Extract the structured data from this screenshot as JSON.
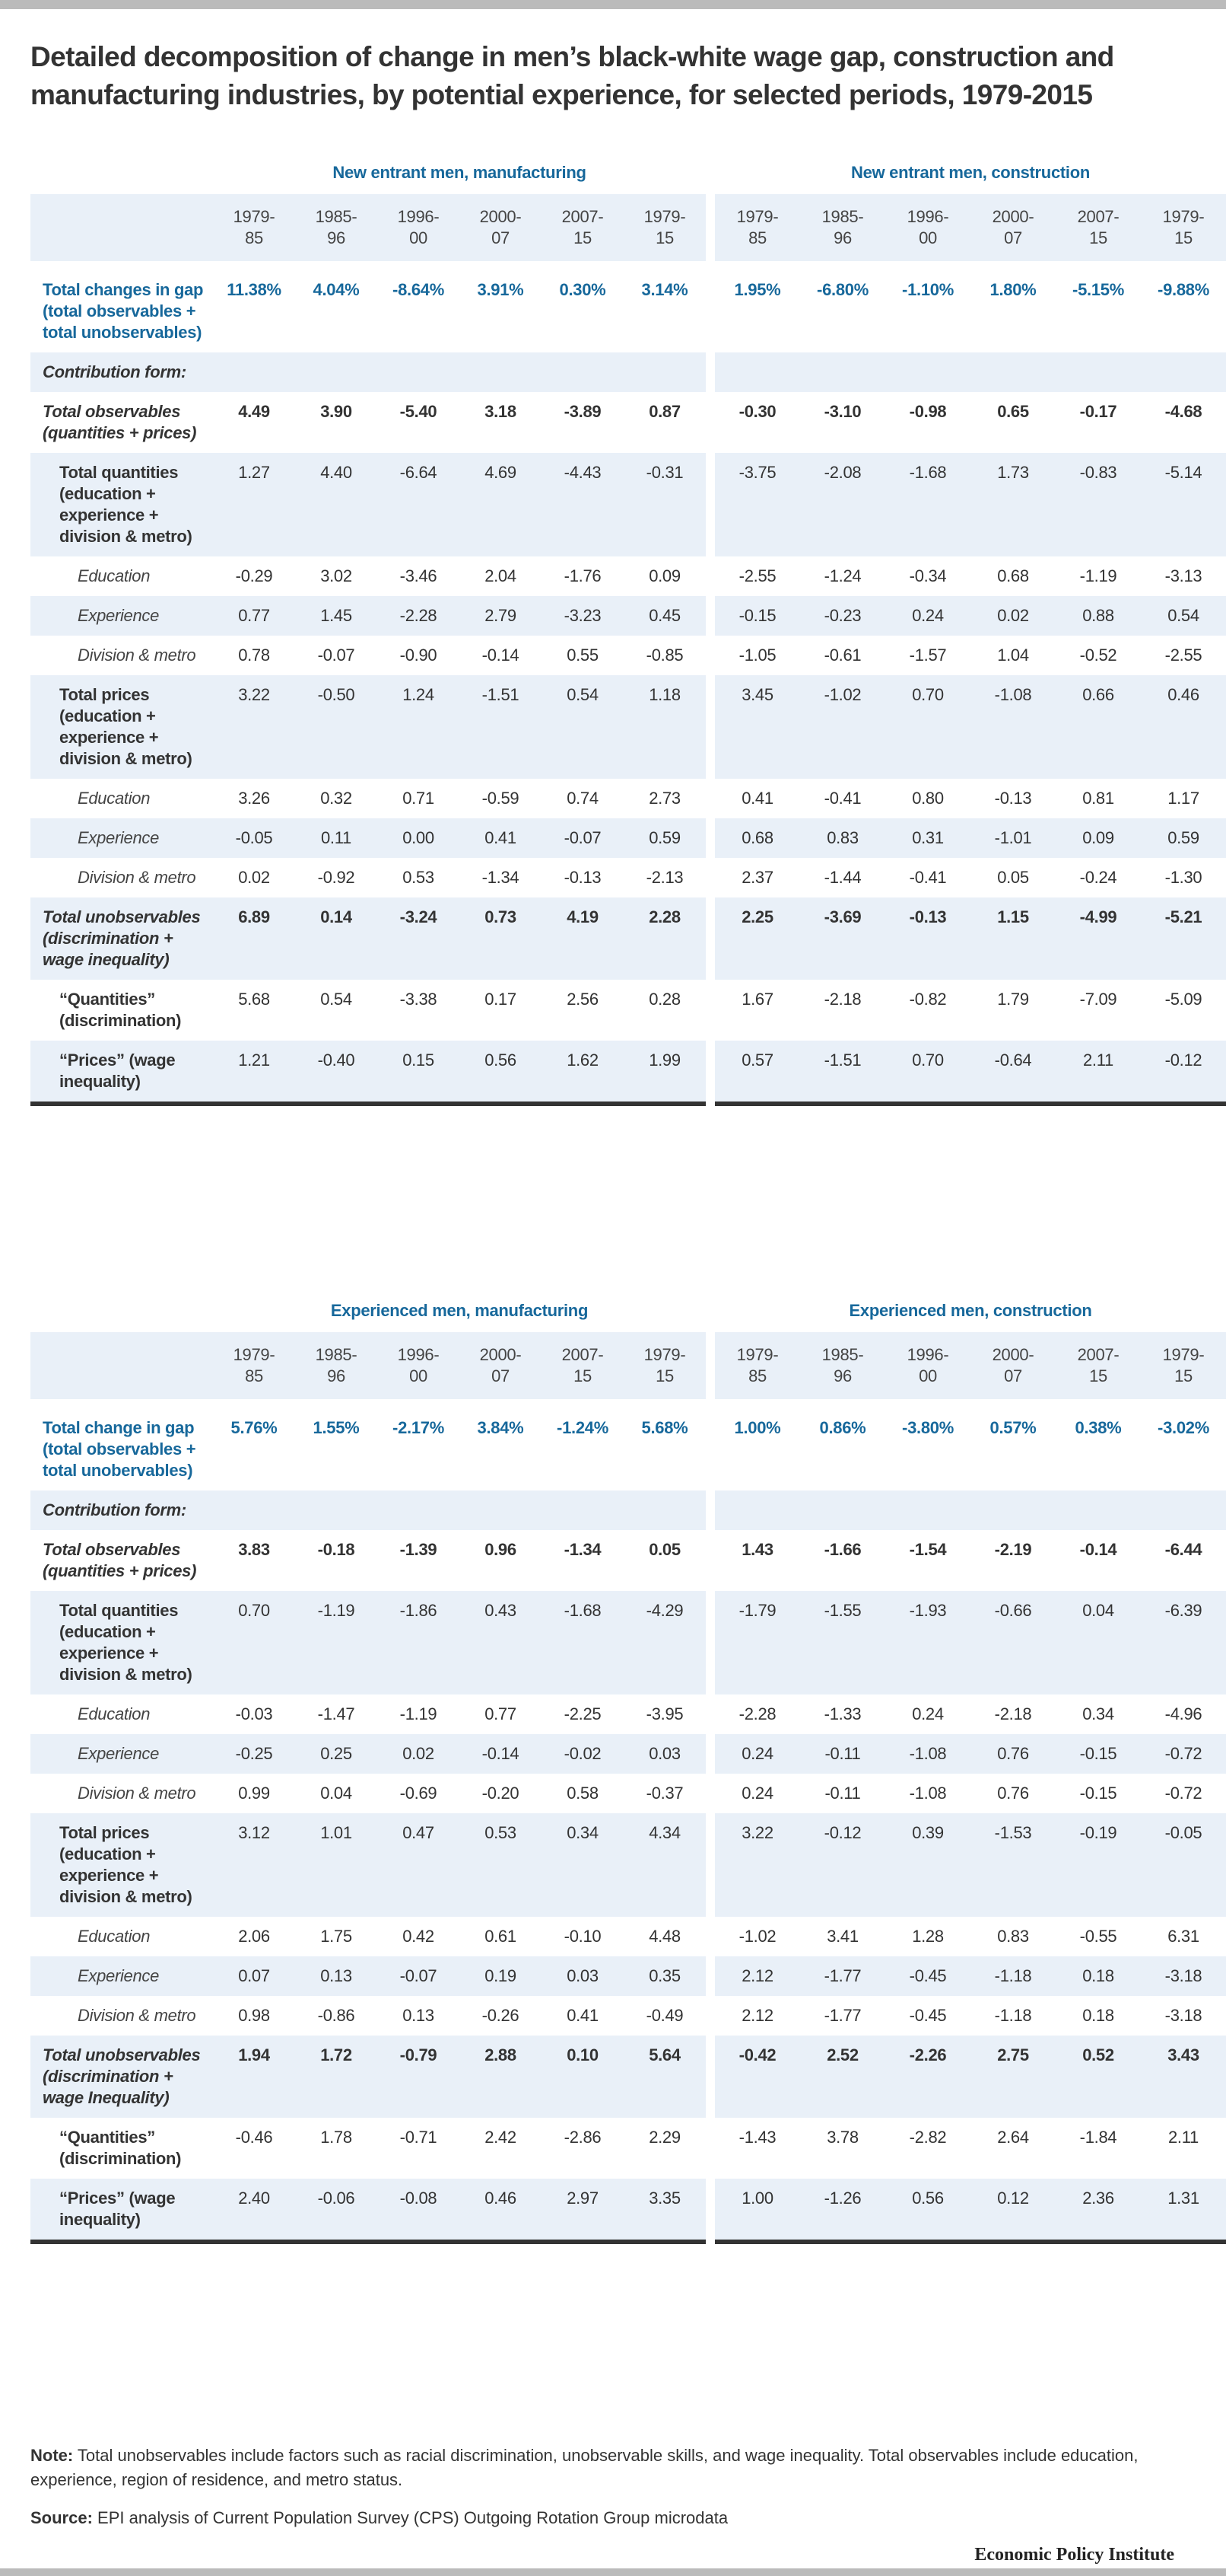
{
  "title": "Detailed decomposition of change in men’s black-white wage gap, construction and manufacturing industries, by potential experience, for selected periods, 1979-2015",
  "periods": [
    "1979-\n85",
    "1985-\n96",
    "1996-\n00",
    "2000-\n07",
    "2007-\n15",
    "1979-\n15"
  ],
  "sections": [
    {
      "group_left": "New entrant men, manufacturing",
      "group_right": "New entrant men, construction",
      "rows": [
        {
          "style": "total",
          "label": "Total changes in gap (total observables + total unobservables)",
          "mfg": [
            "11.38%",
            "4.04%",
            "-8.64%",
            "3.91%",
            "0.30%",
            "3.14%"
          ],
          "con": [
            "1.95%",
            "-6.80%",
            "-1.10%",
            "1.80%",
            "-5.15%",
            "-9.88%"
          ]
        },
        {
          "style": "form",
          "label": "Contribution form:",
          "mfg": [
            "",
            "",
            "",
            "",
            "",
            ""
          ],
          "con": [
            "",
            "",
            "",
            "",
            "",
            ""
          ]
        },
        {
          "style": "bigital",
          "label": "Total observables (quantities + prices)",
          "mfg": [
            "4.49",
            "3.90",
            "-5.40",
            "3.18",
            "-3.89",
            "0.87"
          ],
          "con": [
            "-0.30",
            "-3.10",
            "-0.98",
            "0.65",
            "-0.17",
            "-4.68"
          ]
        },
        {
          "style": "sub",
          "label": "Total quantities (education + experience + division & metro)",
          "mfg": [
            "1.27",
            "4.40",
            "-6.64",
            "4.69",
            "-4.43",
            "-0.31"
          ],
          "con": [
            "-3.75",
            "-2.08",
            "-1.68",
            "1.73",
            "-0.83",
            "-5.14"
          ]
        },
        {
          "style": "subsub",
          "label": "Education",
          "mfg": [
            "-0.29",
            "3.02",
            "-3.46",
            "2.04",
            "-1.76",
            "0.09"
          ],
          "con": [
            "-2.55",
            "-1.24",
            "-0.34",
            "0.68",
            "-1.19",
            "-3.13"
          ]
        },
        {
          "style": "subsub",
          "label": "Experience",
          "mfg": [
            "0.77",
            "1.45",
            "-2.28",
            "2.79",
            "-3.23",
            "0.45"
          ],
          "con": [
            "-0.15",
            "-0.23",
            "0.24",
            "0.02",
            "0.88",
            "0.54"
          ]
        },
        {
          "style": "subsub",
          "label": "Division & metro",
          "mfg": [
            "0.78",
            "-0.07",
            "-0.90",
            "-0.14",
            "0.55",
            "-0.85"
          ],
          "con": [
            "-1.05",
            "-0.61",
            "-1.57",
            "1.04",
            "-0.52",
            "-2.55"
          ]
        },
        {
          "style": "sub",
          "label": "Total prices (education + experience + division & metro)",
          "mfg": [
            "3.22",
            "-0.50",
            "1.24",
            "-1.51",
            "0.54",
            "1.18"
          ],
          "con": [
            "3.45",
            "-1.02",
            "0.70",
            "-1.08",
            "0.66",
            "0.46"
          ]
        },
        {
          "style": "subsub",
          "label": "Education",
          "mfg": [
            "3.26",
            "0.32",
            "0.71",
            "-0.59",
            "0.74",
            "2.73"
          ],
          "con": [
            "0.41",
            "-0.41",
            "0.80",
            "-0.13",
            "0.81",
            "1.17"
          ]
        },
        {
          "style": "subsub",
          "label": "Experience",
          "mfg": [
            "-0.05",
            "0.11",
            "0.00",
            "0.41",
            "-0.07",
            "0.59"
          ],
          "con": [
            "0.68",
            "0.83",
            "0.31",
            "-1.01",
            "0.09",
            "0.59"
          ]
        },
        {
          "style": "subsub",
          "label": "Division & metro",
          "mfg": [
            "0.02",
            "-0.92",
            "0.53",
            "-1.34",
            "-0.13",
            "-2.13"
          ],
          "con": [
            "2.37",
            "-1.44",
            "-0.41",
            "0.05",
            "-0.24",
            "-1.30"
          ]
        },
        {
          "style": "bigital",
          "label": "Total unobservables (discrimination + wage inequality)",
          "mfg": [
            "6.89",
            "0.14",
            "-3.24",
            "0.73",
            "4.19",
            "2.28"
          ],
          "con": [
            "2.25",
            "-3.69",
            "-0.13",
            "1.15",
            "-4.99",
            "-5.21"
          ]
        },
        {
          "style": "sub",
          "label": "“Quantities” (discrimination)",
          "mfg": [
            "5.68",
            "0.54",
            "-3.38",
            "0.17",
            "2.56",
            "0.28"
          ],
          "con": [
            "1.67",
            "-2.18",
            "-0.82",
            "1.79",
            "-7.09",
            "-5.09"
          ]
        },
        {
          "style": "sub",
          "label": "“Prices” (wage inequality)",
          "mfg": [
            "1.21",
            "-0.40",
            "0.15",
            "0.56",
            "1.62",
            "1.99"
          ],
          "con": [
            "0.57",
            "-1.51",
            "0.70",
            "-0.64",
            "2.11",
            "-0.12"
          ]
        }
      ]
    },
    {
      "group_left": "Experienced men, manufacturing",
      "group_right": "Experienced men, construction",
      "rows": [
        {
          "style": "total",
          "label": "Total change in gap (total observables + total unobervables)",
          "mfg": [
            "5.76%",
            "1.55%",
            "-2.17%",
            "3.84%",
            "-1.24%",
            "5.68%"
          ],
          "con": [
            "1.00%",
            "0.86%",
            "-3.80%",
            "0.57%",
            "0.38%",
            "-3.02%"
          ]
        },
        {
          "style": "form",
          "label": "Contribution form:",
          "mfg": [
            "",
            "",
            "",
            "",
            "",
            ""
          ],
          "con": [
            "",
            "",
            "",
            "",
            "",
            ""
          ]
        },
        {
          "style": "bigital",
          "label": "Total observables (quantities + prices)",
          "mfg": [
            "3.83",
            "-0.18",
            "-1.39",
            "0.96",
            "-1.34",
            "0.05"
          ],
          "con": [
            "1.43",
            "-1.66",
            "-1.54",
            "-2.19",
            "-0.14",
            "-6.44"
          ]
        },
        {
          "style": "sub",
          "label": "Total quantities (education + experience + division & metro)",
          "mfg": [
            "0.70",
            "-1.19",
            "-1.86",
            "0.43",
            "-1.68",
            "-4.29"
          ],
          "con": [
            "-1.79",
            "-1.55",
            "-1.93",
            "-0.66",
            "0.04",
            "-6.39"
          ]
        },
        {
          "style": "subsub",
          "label": "Education",
          "mfg": [
            "-0.03",
            "-1.47",
            "-1.19",
            "0.77",
            "-2.25",
            "-3.95"
          ],
          "con": [
            "-2.28",
            "-1.33",
            "0.24",
            "-2.18",
            "0.34",
            "-4.96"
          ]
        },
        {
          "style": "subsub",
          "label": "Experience",
          "mfg": [
            "-0.25",
            "0.25",
            "0.02",
            "-0.14",
            "-0.02",
            "0.03"
          ],
          "con": [
            "0.24",
            "-0.11",
            "-1.08",
            "0.76",
            "-0.15",
            "-0.72"
          ]
        },
        {
          "style": "subsub",
          "label": "Division & metro",
          "mfg": [
            "0.99",
            "0.04",
            "-0.69",
            "-0.20",
            "0.58",
            "-0.37"
          ],
          "con": [
            "0.24",
            "-0.11",
            "-1.08",
            "0.76",
            "-0.15",
            "-0.72"
          ]
        },
        {
          "style": "sub",
          "label": "Total prices (education + experience + division & metro)",
          "mfg": [
            "3.12",
            "1.01",
            "0.47",
            "0.53",
            "0.34",
            "4.34"
          ],
          "con": [
            "3.22",
            "-0.12",
            "0.39",
            "-1.53",
            "-0.19",
            "-0.05"
          ]
        },
        {
          "style": "subsub",
          "label": "Education",
          "mfg": [
            "2.06",
            "1.75",
            "0.42",
            "0.61",
            "-0.10",
            "4.48"
          ],
          "con": [
            "-1.02",
            "3.41",
            "1.28",
            "0.83",
            "-0.55",
            "6.31"
          ]
        },
        {
          "style": "subsub",
          "label": "Experience",
          "mfg": [
            "0.07",
            "0.13",
            "-0.07",
            "0.19",
            "0.03",
            "0.35"
          ],
          "con": [
            "2.12",
            "-1.77",
            "-0.45",
            "-1.18",
            "0.18",
            "-3.18"
          ]
        },
        {
          "style": "subsub",
          "label": "Division & metro",
          "mfg": [
            "0.98",
            "-0.86",
            "0.13",
            "-0.26",
            "0.41",
            "-0.49"
          ],
          "con": [
            "2.12",
            "-1.77",
            "-0.45",
            "-1.18",
            "0.18",
            "-3.18"
          ]
        },
        {
          "style": "bigital",
          "label": "Total unobservables (discrimination + wage Inequality)",
          "mfg": [
            "1.94",
            "1.72",
            "-0.79",
            "2.88",
            "0.10",
            "5.64"
          ],
          "con": [
            "-0.42",
            "2.52",
            "-2.26",
            "2.75",
            "0.52",
            "3.43"
          ]
        },
        {
          "style": "sub",
          "label": "“Quantities” (discrimination)",
          "mfg": [
            "-0.46",
            "1.78",
            "-0.71",
            "2.42",
            "-2.86",
            "2.29"
          ],
          "con": [
            "-1.43",
            "3.78",
            "-2.82",
            "2.64",
            "-1.84",
            "2.11"
          ]
        },
        {
          "style": "sub",
          "label": "“Prices” (wage inequality)",
          "mfg": [
            "2.40",
            "-0.06",
            "-0.08",
            "0.46",
            "2.97",
            "3.35"
          ],
          "con": [
            "1.00",
            "-1.26",
            "0.56",
            "0.12",
            "2.36",
            "1.31"
          ]
        }
      ]
    }
  ],
  "footer": {
    "note_label": "Note:",
    "note_text": " Total unobservables include factors such as racial discrimination, unobservable skills, and wage inequality. Total observables include education, experience, region of residence, and metro status.",
    "source_label": "Source:",
    "source_text": " EPI analysis of Current Population Survey (CPS) Outgoing Rotation Group microdata",
    "logo": "Economic Policy Institute"
  },
  "colors": {
    "accent_blue": "#17689b",
    "band": "#e9f0f8",
    "text": "#333333"
  }
}
